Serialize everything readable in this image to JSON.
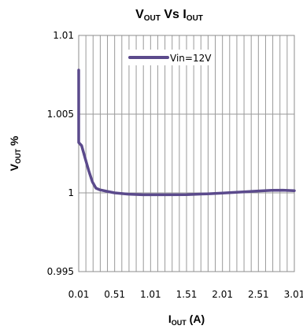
{
  "chart_data": {
    "type": "line",
    "title": {
      "base_left": "V",
      "sub_left": "OUT",
      "mid": " Vs ",
      "base_right": "I",
      "sub_right": "OUT"
    },
    "xlabel": {
      "base": "I",
      "sub": "OUT",
      "tail": " (A)"
    },
    "ylabel": {
      "base": "V",
      "sub": "OUT",
      "tail": " %"
    },
    "xlim": [
      0.01,
      3.01
    ],
    "ylim": [
      0.995,
      1.01
    ],
    "x_ticks": [
      0.01,
      0.51,
      1.01,
      1.51,
      2.01,
      2.51,
      3.01
    ],
    "x_tick_labels": [
      "0.01",
      "0.51",
      "1.01",
      "1.51",
      "2.01",
      "2.51",
      "3.01"
    ],
    "y_ticks": [
      0.995,
      1.0,
      1.005,
      1.01
    ],
    "y_tick_labels": [
      "0.995",
      "1",
      "1.005",
      "1.01"
    ],
    "grid": true,
    "legend_position": "top",
    "series": [
      {
        "name": "Vin=12V",
        "color": "#5b4a8c",
        "x": [
          0.01,
          0.01,
          0.01,
          0.05,
          0.1,
          0.15,
          0.2,
          0.25,
          0.3,
          0.4,
          0.51,
          0.7,
          0.9,
          1.01,
          1.2,
          1.51,
          1.8,
          2.01,
          2.3,
          2.51,
          2.7,
          2.85,
          3.01
        ],
        "y": [
          1.0078,
          1.0045,
          1.0032,
          1.003,
          1.0022,
          1.0014,
          1.0007,
          1.0003,
          1.0002,
          1.0001,
          1.0,
          0.99992,
          0.99988,
          0.99988,
          0.99988,
          0.99989,
          0.99994,
          0.99999,
          1.00006,
          1.00012,
          1.00016,
          1.00017,
          1.00014
        ]
      }
    ]
  }
}
